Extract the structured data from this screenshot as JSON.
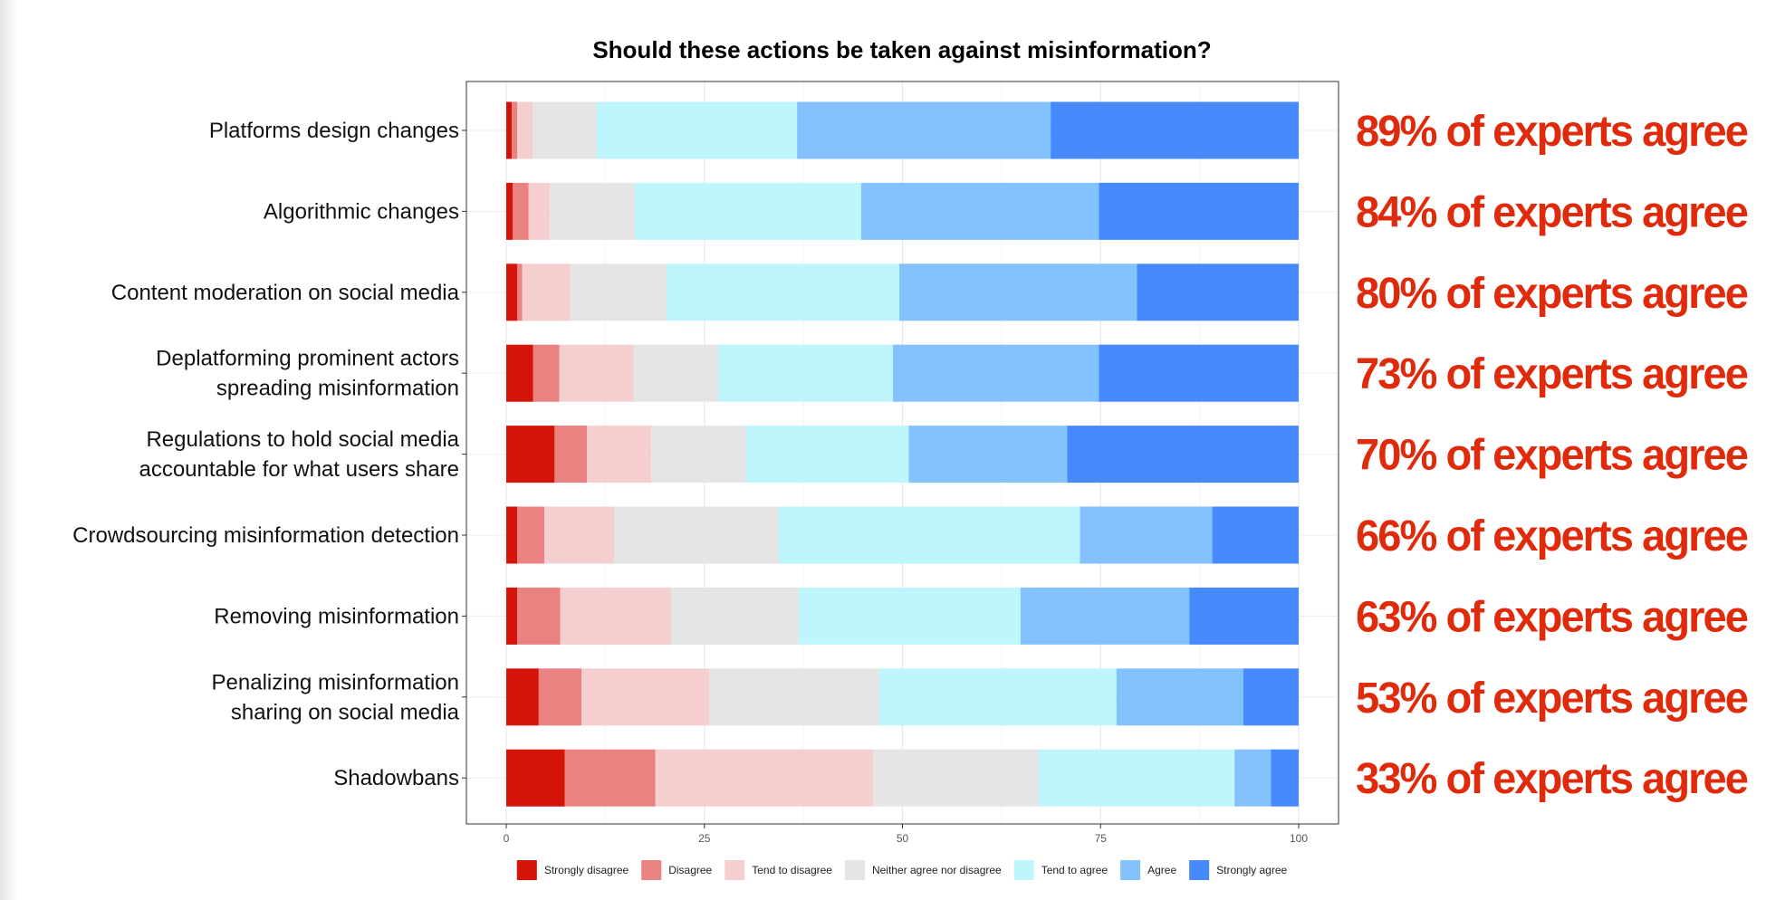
{
  "chart_data": {
    "type": "bar",
    "orientation": "horizontal",
    "stacked": true,
    "title": "Should these actions be taken against misinformation?",
    "xlabel": "",
    "ylabel": "",
    "xlim": [
      0,
      100
    ],
    "x_ticks": [
      0,
      25,
      50,
      75,
      100
    ],
    "grid": true,
    "legend_position": "bottom",
    "categories": [
      [
        "Platforms design changes"
      ],
      [
        "Algorithmic changes"
      ],
      [
        "Content moderation on social media"
      ],
      [
        "Deplatforming prominent actors",
        "spreading misinformation"
      ],
      [
        "Regulations to hold social media",
        "accountable for what users share"
      ],
      [
        "Crowdsourcing misinformation detection"
      ],
      [
        "Removing misinformation"
      ],
      [
        "Penalizing misinformation",
        "sharing on social media"
      ],
      [
        "Shadowbans"
      ]
    ],
    "series": [
      {
        "name": "Strongly disagree",
        "color": "#d41408",
        "values": [
          0.7,
          0.8,
          1.4,
          3.4,
          6.1,
          1.4,
          1.4,
          4.1,
          7.4
        ]
      },
      {
        "name": "Disagree",
        "color": "#eb8282",
        "values": [
          0.7,
          2.0,
          0.6,
          3.3,
          4.1,
          3.4,
          5.4,
          5.4,
          11.4
        ]
      },
      {
        "name": "Tend to disagree",
        "color": "#f5cfd0",
        "values": [
          2.0,
          2.7,
          6.1,
          9.4,
          8.1,
          8.8,
          14.0,
          16.1,
          27.5
        ]
      },
      {
        "name": "Neither agree nor disagree",
        "color": "#e5e5e5",
        "values": [
          8.0,
          10.7,
          12.1,
          10.7,
          11.9,
          20.8,
          16.1,
          21.5,
          20.9
        ]
      },
      {
        "name": "Tend to agree",
        "color": "#bff5fd",
        "values": [
          25.3,
          28.6,
          29.4,
          22.0,
          20.6,
          38.0,
          28.0,
          29.9,
          24.7
        ]
      },
      {
        "name": "Agree",
        "color": "#83c2fd",
        "values": [
          32.0,
          30.0,
          30.0,
          26.0,
          20.0,
          16.7,
          21.3,
          16.0,
          4.6
        ]
      },
      {
        "name": "Strongly agree",
        "color": "#468afe",
        "values": [
          31.3,
          25.2,
          20.4,
          25.2,
          29.2,
          10.9,
          13.8,
          7.0,
          3.5
        ]
      }
    ],
    "annotations": [
      "89% of experts agree",
      "84% of experts agree",
      "80% of experts agree",
      "73% of experts agree",
      "70% of experts agree",
      "66% of experts agree",
      "63% of experts agree",
      "53% of experts agree",
      "33% of experts agree"
    ]
  }
}
